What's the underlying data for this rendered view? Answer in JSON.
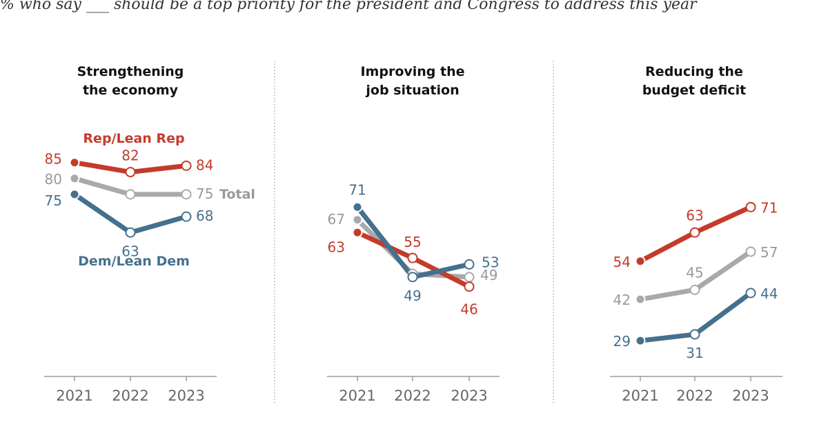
{
  "subtitle": "% who say ___ should be a top priority for the president and Congress to address this year",
  "colors": {
    "rep": "#c43b2c",
    "total": "#a9a9a9",
    "total_label": "#999999",
    "dem": "#45708e",
    "axis": "#888888",
    "divider": "#999999"
  },
  "series_labels": {
    "rep": "Rep/Lean Rep",
    "total": "Total",
    "dem": "Dem/Lean Dem"
  },
  "chart_data": [
    {
      "type": "line",
      "title": [
        "Strengthening",
        "the economy"
      ],
      "x": [
        "2021",
        "2022",
        "2023"
      ],
      "ylim": [
        0,
        100
      ],
      "series": [
        {
          "key": "rep",
          "values": [
            85,
            82,
            84
          ]
        },
        {
          "key": "total",
          "values": [
            80,
            75,
            75
          ]
        },
        {
          "key": "dem",
          "values": [
            75,
            63,
            68
          ]
        }
      ]
    },
    {
      "type": "line",
      "title": [
        "Improving the",
        "job situation"
      ],
      "x": [
        "2021",
        "2022",
        "2023"
      ],
      "ylim": [
        0,
        100
      ],
      "series": [
        {
          "key": "rep",
          "values": [
            63,
            55,
            46
          ]
        },
        {
          "key": "total",
          "values": [
            67,
            50,
            49
          ]
        },
        {
          "key": "dem",
          "values": [
            71,
            49,
            53
          ]
        }
      ]
    },
    {
      "type": "line",
      "title": [
        "Reducing the",
        "budget deficit"
      ],
      "x": [
        "2021",
        "2022",
        "2023"
      ],
      "ylim": [
        0,
        100
      ],
      "series": [
        {
          "key": "rep",
          "values": [
            54,
            63,
            71
          ]
        },
        {
          "key": "total",
          "values": [
            42,
            45,
            57
          ]
        },
        {
          "key": "dem",
          "values": [
            29,
            31,
            44
          ]
        }
      ]
    }
  ]
}
